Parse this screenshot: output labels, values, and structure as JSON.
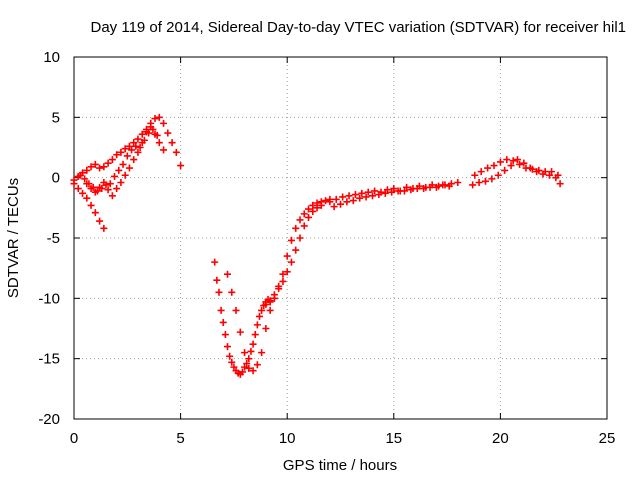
{
  "chart_data": {
    "type": "scatter",
    "title": "Day 119 of 2014, Sidereal Day-to-day VTEC variation (SDTVAR) for receiver hil1",
    "xlabel": "GPS time / hours",
    "ylabel": "SDTVAR / TECUs",
    "xlim": [
      0,
      25
    ],
    "ylim": [
      -20,
      10
    ],
    "xticks": [
      0,
      5,
      10,
      15,
      20,
      25
    ],
    "yticks": [
      -20,
      -15,
      -10,
      -5,
      0,
      5,
      10
    ],
    "grid": true,
    "marker": "+",
    "color": "#ff0000",
    "series": [
      {
        "x": [
          0.0,
          0.2,
          0.4,
          0.6,
          0.8,
          1.0,
          1.2,
          1.4,
          1.6,
          1.8,
          2.0,
          2.2,
          2.4,
          2.6,
          2.8,
          3.0,
          3.2,
          3.4,
          3.6,
          3.8,
          4.0,
          4.2,
          4.4,
          4.6,
          4.8,
          5.0,
          0.6,
          0.8,
          1.0,
          1.2,
          1.4,
          1.6,
          1.8,
          2.0,
          2.2,
          2.4,
          2.6,
          2.8,
          3.0,
          3.2,
          3.4,
          3.6,
          3.8,
          4.0,
          4.2,
          0.3,
          0.5,
          0.7,
          0.9,
          1.1,
          1.3,
          1.5,
          1.7,
          1.9,
          2.1,
          2.3,
          2.5,
          2.7,
          2.9,
          3.1,
          3.3,
          3.5,
          3.7,
          3.9,
          0.0,
          0.2,
          0.4,
          0.6,
          0.8,
          1.0,
          1.2,
          1.4,
          6.6,
          6.7,
          6.8,
          6.9,
          7.0,
          7.1,
          7.2,
          7.3,
          7.4,
          7.5,
          7.6,
          7.7,
          7.8,
          7.9,
          8.0,
          8.1,
          8.2,
          8.3,
          8.4,
          8.5,
          8.6,
          8.7,
          8.8,
          8.9,
          9.0,
          9.1,
          9.2,
          7.2,
          7.4,
          7.6,
          7.8,
          8.0,
          8.2,
          8.4,
          8.6,
          8.8,
          9.0,
          9.2,
          9.4,
          9.6,
          9.8,
          10.0,
          10.2,
          10.4,
          10.6,
          10.8,
          11.0,
          11.2,
          11.4,
          11.6,
          11.8,
          12.0,
          9.0,
          9.2,
          9.4,
          9.6,
          9.8,
          10.0,
          10.2,
          10.4,
          10.6,
          10.8,
          11.0,
          11.2,
          11.4,
          11.6,
          12.0,
          12.3,
          12.6,
          12.9,
          13.2,
          13.5,
          13.8,
          14.1,
          14.4,
          14.7,
          15.0,
          15.3,
          15.6,
          15.9,
          16.2,
          16.5,
          16.8,
          17.1,
          17.4,
          17.7,
          18.0,
          12.2,
          12.5,
          12.8,
          13.1,
          13.4,
          13.7,
          14.0,
          14.3,
          14.6,
          14.9,
          15.2,
          15.5,
          15.8,
          16.1,
          16.4,
          16.7,
          17.0,
          17.3,
          17.6,
          18.7,
          19.0,
          19.3,
          19.6,
          19.9,
          20.2,
          20.5,
          20.8,
          21.1,
          21.4,
          21.7,
          22.0,
          22.3,
          22.6,
          22.8,
          18.8,
          19.1,
          19.4,
          19.7,
          20.0,
          20.3,
          20.6,
          20.9,
          21.2,
          21.5,
          21.8,
          22.1,
          22.4,
          22.7
        ],
        "y": [
          -0.2,
          0.1,
          0.4,
          0.6,
          0.9,
          1.1,
          0.8,
          0.9,
          1.2,
          1.5,
          1.9,
          2.1,
          2.4,
          2.6,
          2.9,
          3.2,
          3.6,
          4.0,
          4.5,
          4.9,
          5.0,
          4.5,
          3.7,
          2.9,
          2.1,
          1.0,
          -0.5,
          -0.9,
          -1.2,
          -0.8,
          -0.4,
          -1.0,
          -1.5,
          -0.9,
          -0.4,
          0.2,
          0.8,
          1.5,
          2.1,
          2.9,
          3.8,
          4.2,
          3.6,
          2.9,
          2.3,
          0.2,
          -0.1,
          -0.5,
          -0.8,
          -1.1,
          -0.9,
          -0.6,
          -0.5,
          0.1,
          0.6,
          1.1,
          1.8,
          2.3,
          2.6,
          2.5,
          3.1,
          3.7,
          4.0,
          3.5,
          -0.5,
          -0.9,
          -1.3,
          -1.7,
          -2.3,
          -2.9,
          -3.6,
          -4.2,
          -7.0,
          -8.5,
          -9.5,
          -11.0,
          -12.0,
          -13.0,
          -14.0,
          -14.8,
          -15.3,
          -15.7,
          -16.0,
          -16.2,
          -16.3,
          -16.1,
          -15.7,
          -15.4,
          -15.0,
          -14.4,
          -13.8,
          -13.0,
          -12.2,
          -11.5,
          -11.0,
          -10.6,
          -10.3,
          -10.1,
          -10.3,
          -8.0,
          -9.5,
          -11.0,
          -12.8,
          -14.5,
          -15.8,
          -16.0,
          -15.5,
          -14.5,
          -12.5,
          -11.0,
          -10.0,
          -9.0,
          -8.0,
          -6.5,
          -5.2,
          -4.2,
          -3.5,
          -3.0,
          -2.6,
          -2.3,
          -2.1,
          -2.0,
          -1.9,
          -1.8,
          -10.5,
          -10.2,
          -9.7,
          -9.2,
          -8.6,
          -7.8,
          -7.0,
          -6.0,
          -5.0,
          -4.0,
          -3.3,
          -2.8,
          -2.5,
          -2.3,
          -2.0,
          -1.8,
          -1.6,
          -1.5,
          -1.4,
          -1.3,
          -1.2,
          -1.1,
          -1.2,
          -1.0,
          -0.9,
          -1.1,
          -0.8,
          -0.9,
          -0.7,
          -0.8,
          -0.6,
          -0.7,
          -0.6,
          -0.5,
          -0.4,
          -2.4,
          -2.2,
          -2.0,
          -1.9,
          -1.7,
          -1.6,
          -1.5,
          -1.4,
          -1.3,
          -1.2,
          -1.1,
          -1.1,
          -1.0,
          -0.9,
          -0.9,
          -0.8,
          -0.8,
          -0.6,
          -0.7,
          -0.6,
          -0.4,
          -0.3,
          -0.1,
          0.2,
          0.6,
          1.0,
          1.5,
          1.2,
          0.8,
          0.5,
          0.3,
          0.2,
          0.0,
          -0.5,
          0.2,
          0.5,
          0.8,
          1.0,
          1.3,
          1.5,
          1.4,
          1.1,
          0.8,
          0.7,
          0.6,
          0.5,
          0.5,
          0.2
        ]
      }
    ]
  }
}
